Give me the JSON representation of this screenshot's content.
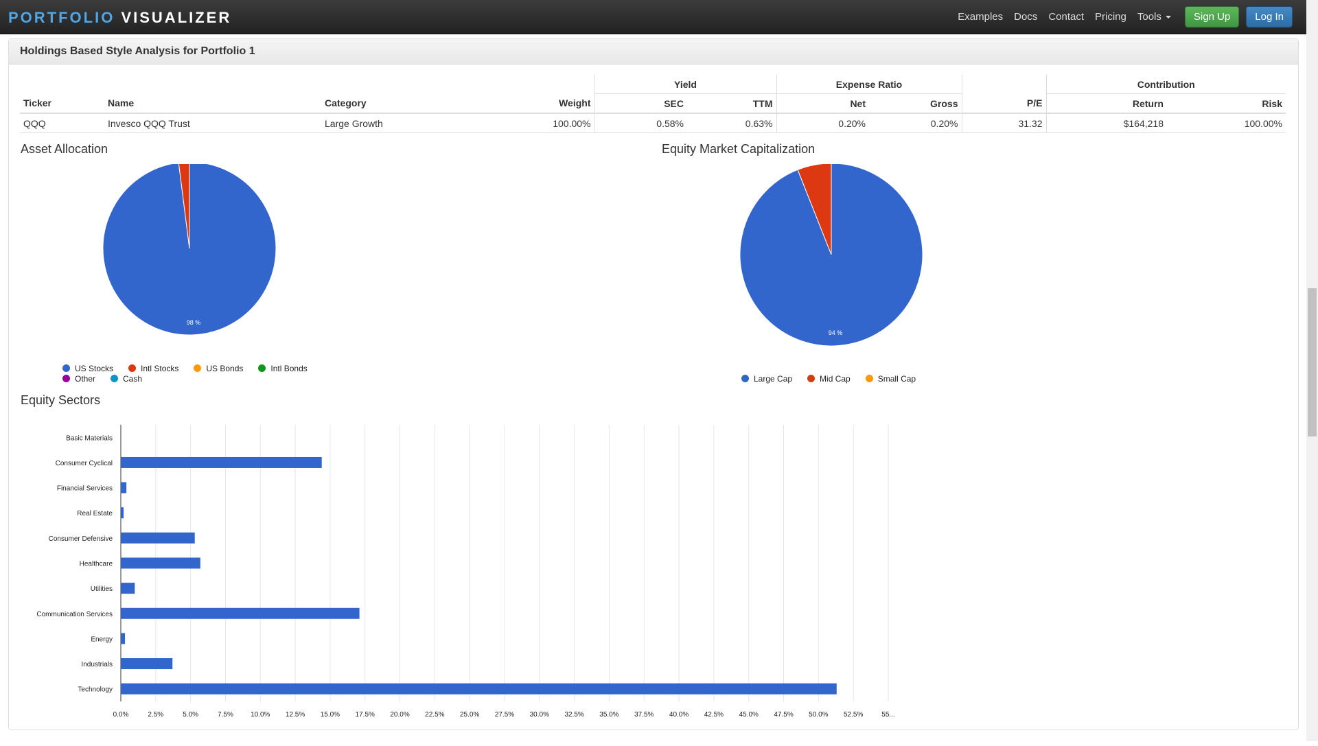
{
  "navbar": {
    "brand_part1": "PORTFOLIO",
    "brand_part2": "VISUALIZER",
    "links": [
      "Examples",
      "Docs",
      "Contact",
      "Pricing"
    ],
    "tools_label": "Tools",
    "signup_label": "Sign Up",
    "login_label": "Log In"
  },
  "panel": {
    "title": "Holdings Based Style Analysis for Portfolio 1"
  },
  "table": {
    "group_headers": {
      "yield": "Yield",
      "expense": "Expense Ratio",
      "contribution": "Contribution"
    },
    "columns": [
      "Ticker",
      "Name",
      "Category",
      "Weight",
      "SEC",
      "TTM",
      "Net",
      "Gross",
      "P/E",
      "Return",
      "Risk"
    ],
    "rows": [
      [
        "QQQ",
        "Invesco QQQ Trust",
        "Large Growth",
        "100.00%",
        "0.58%",
        "0.63%",
        "0.20%",
        "0.20%",
        "31.32",
        "$164,218",
        "100.00%"
      ]
    ]
  },
  "colors": {
    "blue": "#3366cc",
    "red": "#dc3912",
    "orange": "#ff9900",
    "green": "#109618",
    "purple": "#990099",
    "teal": "#0099c6"
  },
  "asset_allocation": {
    "title": "Asset Allocation",
    "chart_data": {
      "type": "pie",
      "slices": [
        {
          "label": "US Stocks",
          "value": 98,
          "color": "#3366cc"
        },
        {
          "label": "Intl Stocks",
          "value": 2,
          "color": "#dc3912"
        },
        {
          "label": "US Bonds",
          "value": 0,
          "color": "#ff9900"
        },
        {
          "label": "Intl Bonds",
          "value": 0,
          "color": "#109618"
        },
        {
          "label": "Other",
          "value": 0,
          "color": "#990099"
        },
        {
          "label": "Cash",
          "value": 0,
          "color": "#0099c6"
        }
      ],
      "data_labels": [
        "98 %"
      ]
    }
  },
  "market_cap": {
    "title": "Equity Market Capitalization",
    "chart_data": {
      "type": "pie",
      "slices": [
        {
          "label": "Large Cap",
          "value": 94,
          "color": "#3366cc"
        },
        {
          "label": "Mid Cap",
          "value": 6,
          "color": "#dc3912"
        },
        {
          "label": "Small Cap",
          "value": 0,
          "color": "#ff9900"
        }
      ],
      "data_labels": [
        "94 %"
      ]
    }
  },
  "sectors": {
    "title": "Equity Sectors",
    "chart_data": {
      "type": "bar",
      "orientation": "horizontal",
      "categories": [
        "Basic Materials",
        "Consumer Cyclical",
        "Financial Services",
        "Real Estate",
        "Consumer Defensive",
        "Healthcare",
        "Utilities",
        "Communication Services",
        "Energy",
        "Industrials",
        "Technology"
      ],
      "values": [
        0.0,
        14.4,
        0.4,
        0.2,
        5.3,
        5.7,
        1.0,
        17.1,
        0.3,
        3.7,
        51.3
      ],
      "xlim": [
        0,
        55
      ],
      "x_ticks": [
        "0.0%",
        "2.5%",
        "5.0%",
        "7.5%",
        "10.0%",
        "12.5%",
        "15.0%",
        "17.5%",
        "20.0%",
        "22.5%",
        "25.0%",
        "27.5%",
        "30.0%",
        "32.5%",
        "35.0%",
        "37.5%",
        "40.0%",
        "42.5%",
        "45.0%",
        "47.5%",
        "50.0%",
        "52.5%",
        "55..."
      ],
      "grid": true,
      "color": "#3366cc"
    }
  }
}
